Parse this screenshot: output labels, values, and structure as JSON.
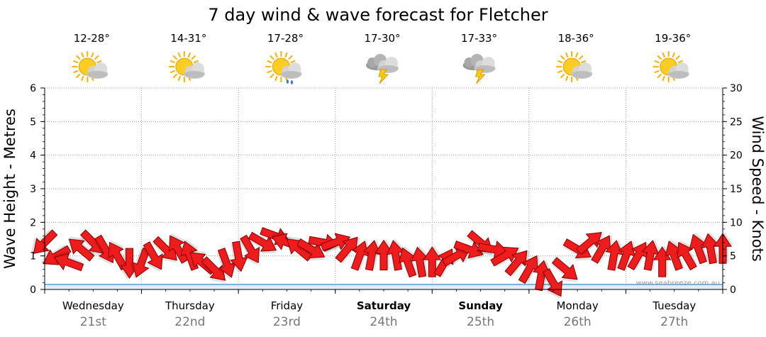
{
  "chart_data": {
    "type": "line",
    "title": "7 day wind & wave forecast for Fletcher",
    "ylabel_left": "Wave Height - Metres",
    "ylabel_right": "Wind Speed - Knots",
    "ylim_left": [
      0,
      6
    ],
    "ylim_right": [
      0,
      30
    ],
    "yticks_left": [
      "0",
      "1",
      "2",
      "3",
      "4",
      "5",
      "6"
    ],
    "yticks_right": [
      "0",
      "5",
      "10",
      "15",
      "20",
      "25",
      "30"
    ],
    "grid": true,
    "watermark": "www.seabreeze.com.au",
    "days": [
      {
        "name": "Wednesday",
        "date": "21st",
        "bold": false,
        "temp": "12-28°",
        "weather_icon": "sun-cloud-icon"
      },
      {
        "name": "Thursday",
        "date": "22nd",
        "bold": false,
        "temp": "14-31°",
        "weather_icon": "sun-cloud-icon"
      },
      {
        "name": "Friday",
        "date": "23rd",
        "bold": false,
        "temp": "17-28°",
        "weather_icon": "sun-cloud-rain-icon"
      },
      {
        "name": "Saturday",
        "date": "24th",
        "bold": true,
        "temp": "17-30°",
        "weather_icon": "storm-icon"
      },
      {
        "name": "Sunday",
        "date": "25th",
        "bold": true,
        "temp": "17-33°",
        "weather_icon": "storm-icon"
      },
      {
        "name": "Monday",
        "date": "26th",
        "bold": false,
        "temp": "18-36°",
        "weather_icon": "sun-cloud-icon"
      },
      {
        "name": "Tuesday",
        "date": "27th",
        "bold": false,
        "temp": "19-36°",
        "weather_icon": "sun-cloud-icon"
      }
    ],
    "wave_series": {
      "name": "Wave Height",
      "color": "#5a9fd4",
      "x_days": [
        0,
        0.5,
        1,
        1.5,
        2,
        2.5,
        3,
        3.5,
        4,
        4.5,
        5,
        5.5,
        6,
        6.5,
        7
      ],
      "values": [
        0.15,
        0.15,
        0.15,
        0.15,
        0.15,
        0.15,
        0.15,
        0.15,
        0.15,
        0.15,
        0.15,
        0.15,
        0.15,
        0.15,
        0.15
      ]
    },
    "wind_series": {
      "name": "Wind Speed",
      "color": "#ee1c1c",
      "x_days": [
        0.0,
        0.125,
        0.25,
        0.375,
        0.5,
        0.625,
        0.75,
        0.875,
        1.0,
        1.125,
        1.25,
        1.375,
        1.5,
        1.625,
        1.75,
        1.875,
        2.0,
        2.125,
        2.25,
        2.375,
        2.5,
        2.625,
        2.75,
        2.875,
        3.0,
        3.125,
        3.25,
        3.375,
        3.5,
        3.625,
        3.75,
        3.875,
        4.0,
        4.125,
        4.25,
        4.375,
        4.5,
        4.625,
        4.75,
        4.875,
        5.0,
        5.125,
        5.25,
        5.375,
        5.5,
        5.625,
        5.75,
        5.875,
        6.0,
        6.125,
        6.25,
        6.375,
        6.5,
        6.625,
        6.75,
        6.875,
        7.0
      ],
      "knots": [
        7,
        5,
        4,
        6,
        7,
        6,
        5,
        4,
        4,
        5,
        6,
        6,
        5,
        4,
        3,
        4,
        5,
        6,
        7,
        8,
        7,
        6,
        6,
        7,
        7,
        6,
        5,
        5,
        5,
        5,
        4,
        4,
        4,
        4,
        5,
        6,
        7,
        6,
        5,
        4,
        3,
        2,
        1,
        3,
        6,
        7,
        6,
        5,
        5,
        5,
        5,
        4,
        5,
        5,
        6,
        6,
        6
      ],
      "direction_deg": [
        135,
        150,
        200,
        220,
        45,
        60,
        240,
        90,
        110,
        60,
        45,
        240,
        250,
        220,
        45,
        70,
        80,
        60,
        30,
        20,
        200,
        220,
        30,
        10,
        340,
        310,
        290,
        280,
        270,
        260,
        250,
        260,
        270,
        300,
        330,
        20,
        40,
        10,
        330,
        310,
        300,
        280,
        60,
        40,
        30,
        320,
        300,
        280,
        290,
        300,
        280,
        270,
        250,
        240,
        250,
        260,
        270
      ]
    }
  }
}
